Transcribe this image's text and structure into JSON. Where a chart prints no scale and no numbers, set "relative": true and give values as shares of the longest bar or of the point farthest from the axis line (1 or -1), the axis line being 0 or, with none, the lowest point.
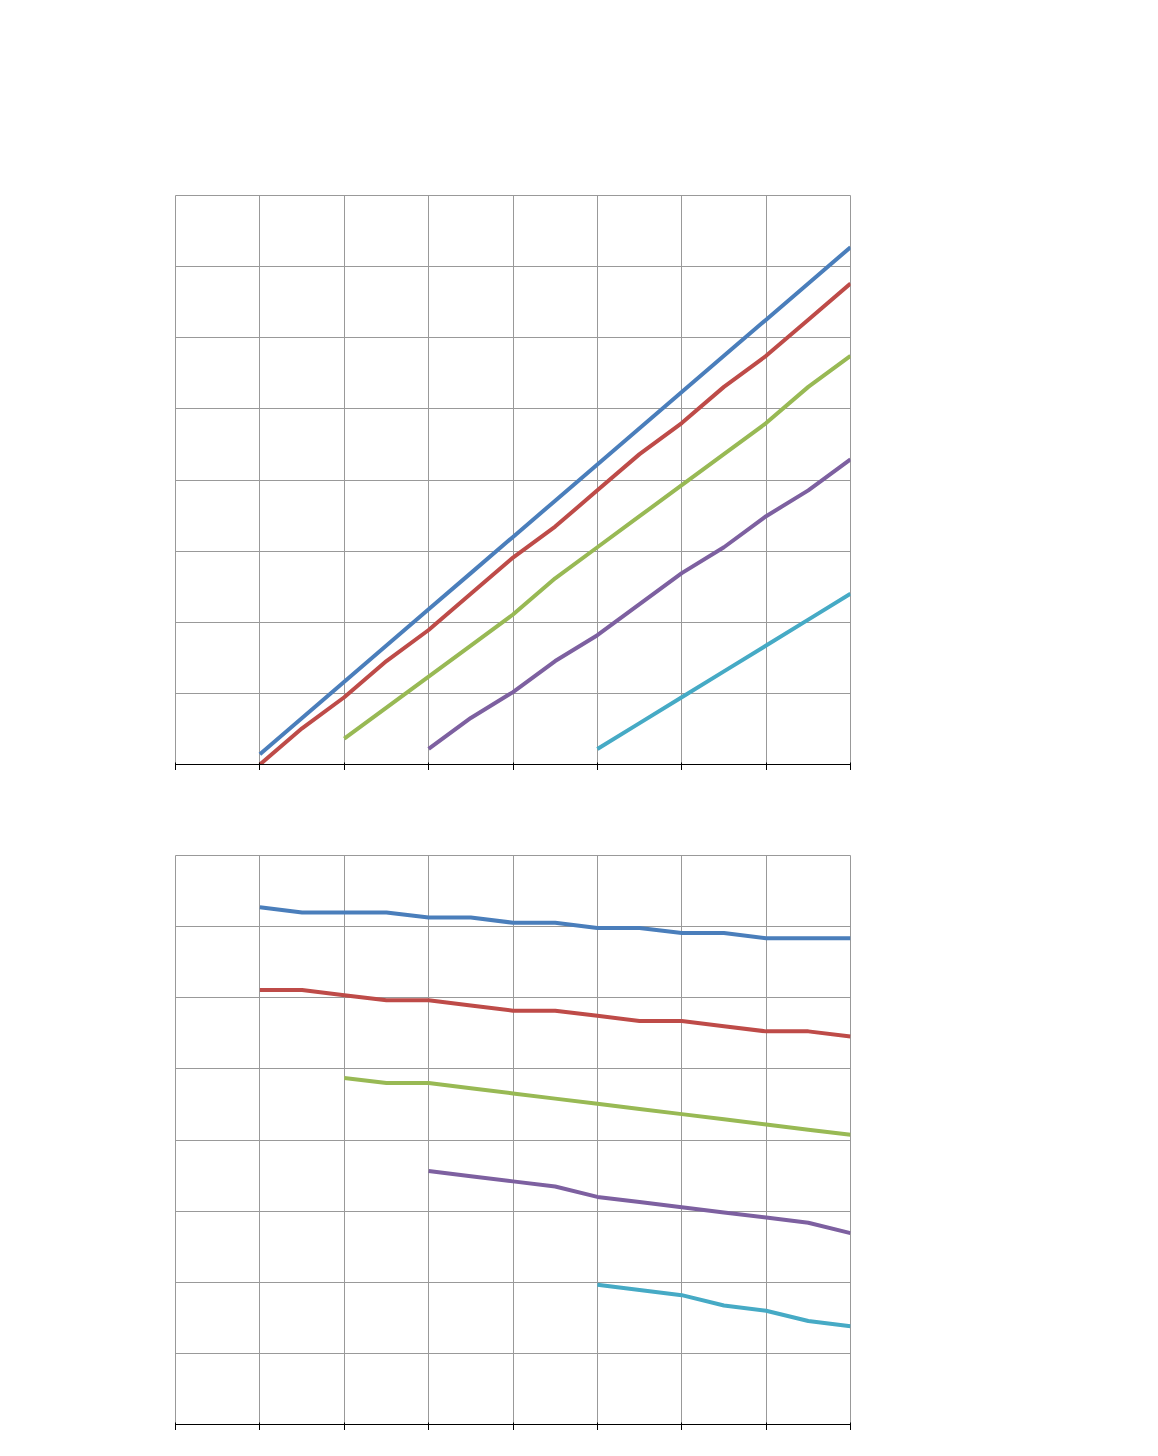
{
  "chart_data": [
    {
      "type": "line",
      "relative": true,
      "grid": true,
      "line_style": "solid",
      "marker": "none",
      "categories": [
        null,
        null,
        null,
        null,
        null,
        null,
        null,
        null,
        null,
        null,
        null,
        null,
        null,
        null,
        null,
        null,
        null
      ],
      "series": [
        {
          "color": "#4a7ebb",
          "values": [
            null,
            null,
            0.02,
            0.09,
            0.16,
            0.23,
            0.3,
            0.37,
            0.44,
            0.51,
            0.58,
            0.65,
            0.72,
            0.79,
            0.86,
            0.93,
            1.0
          ]
        },
        {
          "color": "#be4b48",
          "values": [
            null,
            null,
            0.0,
            0.07,
            0.13,
            0.2,
            0.26,
            0.33,
            0.4,
            0.46,
            0.53,
            0.6,
            0.66,
            0.73,
            0.79,
            0.86,
            0.93
          ]
        },
        {
          "color": "#98b954",
          "values": [
            null,
            null,
            null,
            null,
            0.05,
            0.11,
            0.17,
            0.23,
            0.29,
            0.36,
            0.42,
            0.48,
            0.54,
            0.6,
            0.66,
            0.73,
            0.79
          ]
        },
        {
          "color": "#7d60a0",
          "values": [
            null,
            null,
            null,
            null,
            null,
            null,
            0.03,
            0.09,
            0.14,
            0.2,
            0.25,
            0.31,
            0.37,
            0.42,
            0.48,
            0.53,
            0.59
          ]
        },
        {
          "color": "#46aac5",
          "values": [
            null,
            null,
            null,
            null,
            null,
            null,
            null,
            null,
            null,
            null,
            0.03,
            0.08,
            0.13,
            0.18,
            0.23,
            0.28,
            0.33
          ]
        }
      ]
    },
    {
      "type": "line",
      "relative": true,
      "grid": true,
      "line_style": "solid",
      "marker": "none",
      "categories": [
        null,
        null,
        null,
        null,
        null,
        null,
        null,
        null,
        null,
        null,
        null,
        null,
        null,
        null,
        null,
        null,
        null
      ],
      "series": [
        {
          "color": "#4a7ebb",
          "values": [
            null,
            null,
            1.0,
            0.99,
            0.99,
            0.99,
            0.98,
            0.98,
            0.97,
            0.97,
            0.96,
            0.96,
            0.95,
            0.95,
            0.94,
            0.94,
            0.94
          ]
        },
        {
          "color": "#be4b48",
          "values": [
            null,
            null,
            0.84,
            0.84,
            0.83,
            0.82,
            0.82,
            0.81,
            0.8,
            0.8,
            0.79,
            0.78,
            0.78,
            0.77,
            0.76,
            0.76,
            0.75
          ]
        },
        {
          "color": "#98b954",
          "values": [
            null,
            null,
            null,
            null,
            0.67,
            0.66,
            0.66,
            0.65,
            0.64,
            0.63,
            0.62,
            0.61,
            0.6,
            0.59,
            0.58,
            0.57,
            0.56
          ]
        },
        {
          "color": "#7d60a0",
          "values": [
            null,
            null,
            null,
            null,
            null,
            null,
            0.49,
            0.48,
            0.47,
            0.46,
            0.44,
            0.43,
            0.42,
            0.41,
            0.4,
            0.39,
            0.37
          ]
        },
        {
          "color": "#46aac5",
          "values": [
            null,
            null,
            null,
            null,
            null,
            null,
            null,
            null,
            null,
            null,
            0.27,
            0.26,
            0.25,
            0.23,
            0.22,
            0.2,
            0.19
          ]
        }
      ]
    }
  ]
}
